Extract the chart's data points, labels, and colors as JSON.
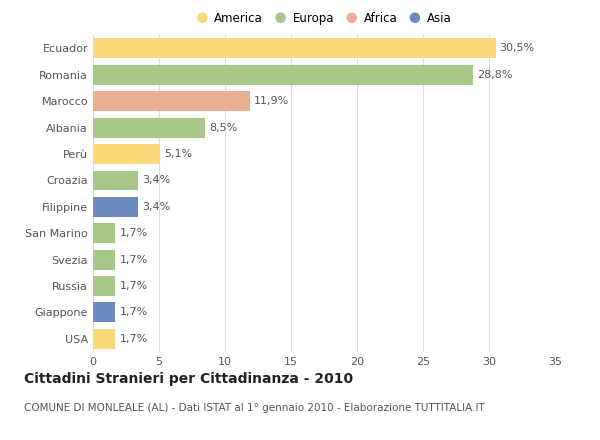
{
  "categories": [
    "Ecuador",
    "Romania",
    "Marocco",
    "Albania",
    "Perù",
    "Croazia",
    "Filippine",
    "San Marino",
    "Svezia",
    "Russia",
    "Giappone",
    "USA"
  ],
  "values": [
    30.5,
    28.8,
    11.9,
    8.5,
    5.1,
    3.4,
    3.4,
    1.7,
    1.7,
    1.7,
    1.7,
    1.7
  ],
  "labels": [
    "30,5%",
    "28,8%",
    "11,9%",
    "8,5%",
    "5,1%",
    "3,4%",
    "3,4%",
    "1,7%",
    "1,7%",
    "1,7%",
    "1,7%",
    "1,7%"
  ],
  "continents": [
    "America",
    "Europa",
    "Africa",
    "Europa",
    "America",
    "Europa",
    "Asia",
    "Europa",
    "Europa",
    "Europa",
    "Asia",
    "America"
  ],
  "colors": {
    "America": "#F9D97A",
    "Europa": "#A8C88A",
    "Africa": "#E8B090",
    "Asia": "#6B8BBF"
  },
  "legend_order": [
    "America",
    "Europa",
    "Africa",
    "Asia"
  ],
  "title": "Cittadini Stranieri per Cittadinanza - 2010",
  "subtitle": "COMUNE DI MONLEALE (AL) - Dati ISTAT al 1° gennaio 2010 - Elaborazione TUTTITALIA.IT",
  "xlim": [
    0,
    35
  ],
  "xticks": [
    0,
    5,
    10,
    15,
    20,
    25,
    30,
    35
  ],
  "background_color": "#FFFFFF",
  "grid_color": "#DDDDDD",
  "bar_height": 0.75,
  "title_fontsize": 10,
  "subtitle_fontsize": 7.5,
  "tick_fontsize": 8,
  "label_fontsize": 8
}
